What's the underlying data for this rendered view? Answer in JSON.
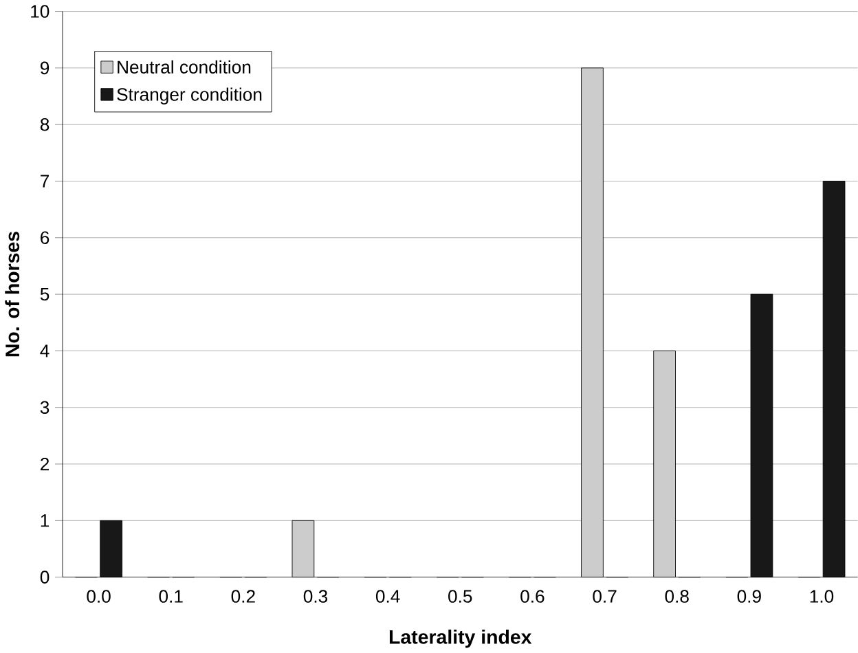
{
  "chart_data": {
    "type": "bar",
    "xlabel": "Laterality index",
    "ylabel": "No. of horses",
    "categories": [
      "0.0",
      "0.1",
      "0.2",
      "0.3",
      "0.4",
      "0.5",
      "0.6",
      "0.7",
      "0.8",
      "0.9",
      "1.0"
    ],
    "series": [
      {
        "name": "Neutral condition",
        "color": "#cccccc",
        "values": [
          0,
          0,
          0,
          1,
          0,
          0,
          0,
          9,
          4,
          0,
          0
        ]
      },
      {
        "name": "Stranger condition",
        "color": "#181818",
        "values": [
          1,
          0,
          0,
          0,
          0,
          0,
          0,
          0,
          0,
          5,
          7
        ]
      }
    ],
    "ylim": [
      0,
      10
    ],
    "yticks": [
      0,
      1,
      2,
      3,
      4,
      5,
      6,
      7,
      8,
      9,
      10
    ],
    "grid": "y",
    "legend": "top left"
  }
}
